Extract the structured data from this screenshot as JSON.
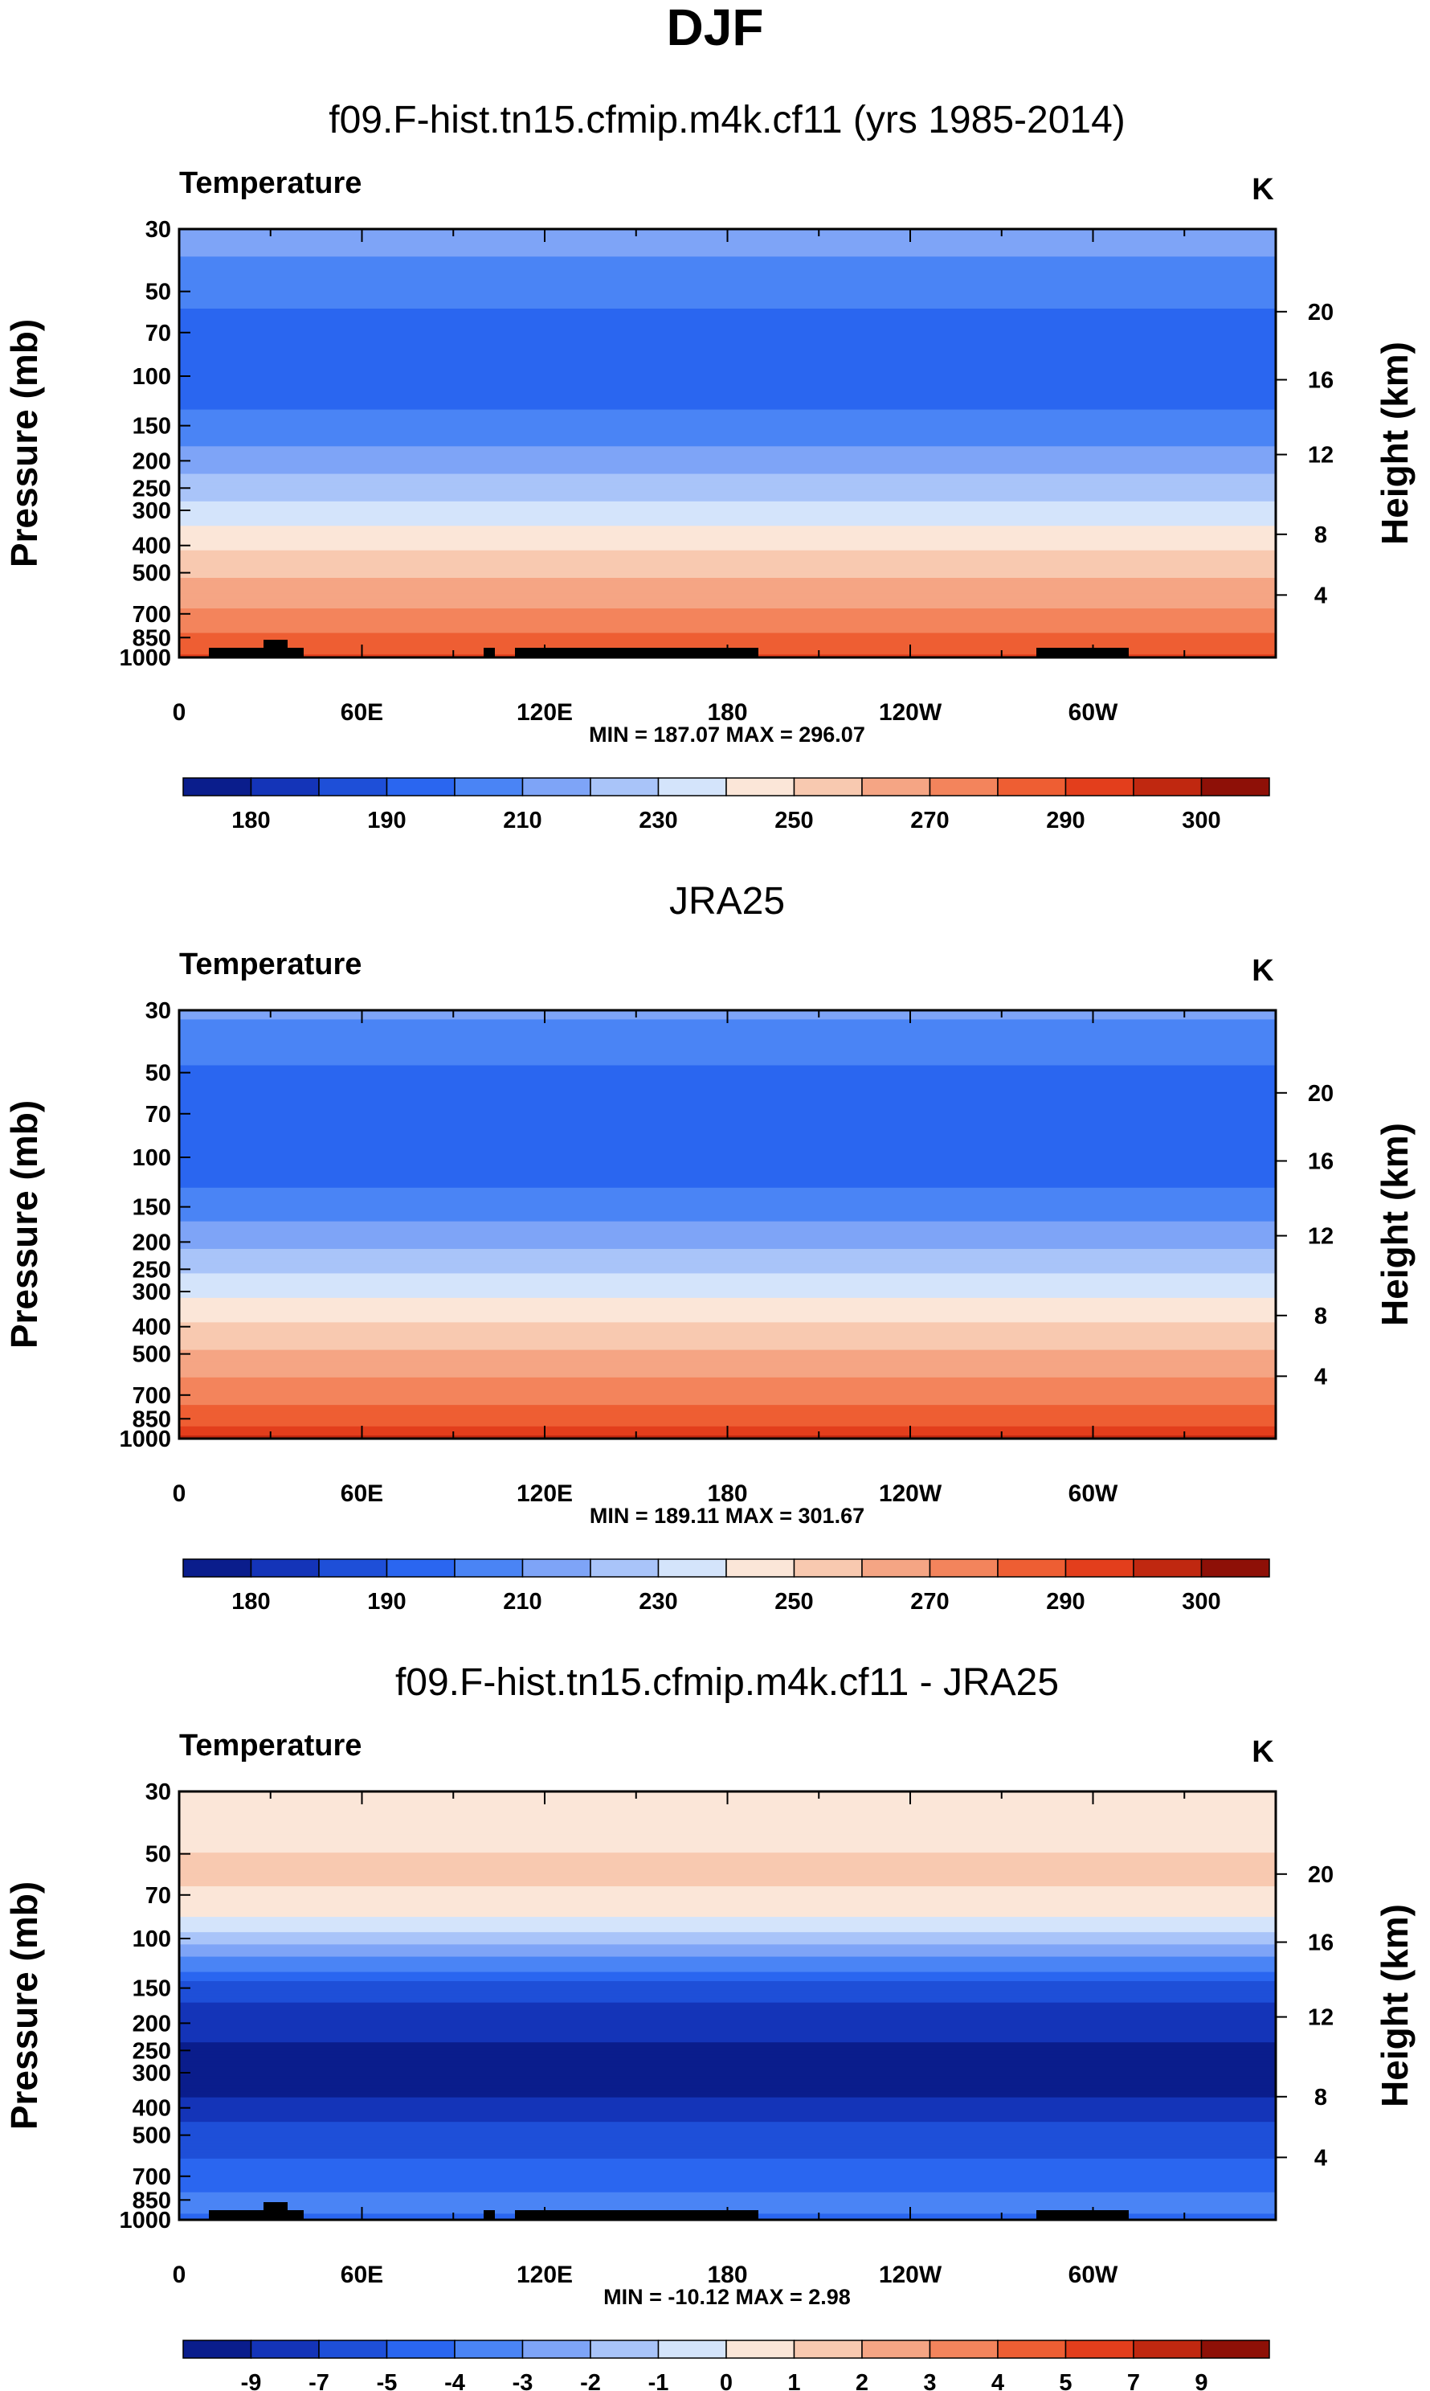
{
  "page_title": "DJF",
  "units": "K",
  "chart_data": [
    {
      "type": "heatmap",
      "panel_title": "f09.F-hist.tn15.cfmip.m4k.cf11 (yrs 1985-2014)",
      "variable_label": "Temperature",
      "units": "K",
      "ylabel": "Pressure (mb)",
      "y2label": "Height (km)",
      "xticks": [
        "0",
        "60E",
        "120E",
        "180",
        "120W",
        "60W"
      ],
      "yticks": [
        "30",
        "50",
        "70",
        "100",
        "150",
        "200",
        "250",
        "300",
        "400",
        "500",
        "700",
        "850",
        "1000"
      ],
      "y2ticks": [
        "20",
        "16",
        "12",
        "8",
        "4"
      ],
      "stats": "MIN = 187.07  MAX = 296.07",
      "colorbar_labels": [
        "180",
        "190",
        "210",
        "230",
        "250",
        "270",
        "290",
        "300"
      ],
      "colorbar_levels": [
        175,
        180,
        185,
        190,
        200,
        210,
        220,
        230,
        240,
        250,
        260,
        270,
        280,
        290,
        295,
        300,
        305
      ],
      "colors": [
        "#0a1d8c",
        "#1434b8",
        "#1e4fd8",
        "#2a66f0",
        "#4a84f5",
        "#7ea4f7",
        "#a9c4f9",
        "#d4e4fb",
        "#fbe6d8",
        "#f8c9b0",
        "#f5a584",
        "#f3845c",
        "#ee5e33",
        "#e33e1c",
        "#c02810",
        "#8e1007"
      ],
      "profile": [
        {
          "p": 30,
          "t": 217
        },
        {
          "p": 40,
          "t": 208
        },
        {
          "p": 60,
          "t": 199
        },
        {
          "p": 100,
          "t": 193
        },
        {
          "p": 150,
          "t": 203
        },
        {
          "p": 200,
          "t": 215
        },
        {
          "p": 250,
          "t": 225
        },
        {
          "p": 300,
          "t": 233
        },
        {
          "p": 400,
          "t": 248
        },
        {
          "p": 500,
          "t": 258
        },
        {
          "p": 700,
          "t": 272
        },
        {
          "p": 850,
          "t": 282
        },
        {
          "p": 1000,
          "t": 292
        }
      ]
    },
    {
      "type": "heatmap",
      "panel_title": "JRA25",
      "variable_label": "Temperature",
      "units": "K",
      "ylabel": "Pressure (mb)",
      "y2label": "Height (km)",
      "xticks": [
        "0",
        "60E",
        "120E",
        "180",
        "120W",
        "60W"
      ],
      "yticks": [
        "30",
        "50",
        "70",
        "100",
        "150",
        "200",
        "250",
        "300",
        "400",
        "500",
        "700",
        "850",
        "1000"
      ],
      "y2ticks": [
        "20",
        "16",
        "12",
        "8",
        "4"
      ],
      "stats": "MIN = 189.11  MAX = 301.67",
      "colorbar_labels": [
        "180",
        "190",
        "210",
        "230",
        "250",
        "270",
        "290",
        "300"
      ],
      "colorbar_levels": [
        175,
        180,
        185,
        190,
        200,
        210,
        220,
        230,
        240,
        250,
        260,
        270,
        280,
        290,
        295,
        300,
        305
      ],
      "colors": [
        "#0a1d8c",
        "#1434b8",
        "#1e4fd8",
        "#2a66f0",
        "#4a84f5",
        "#7ea4f7",
        "#a9c4f9",
        "#d4e4fb",
        "#fbe6d8",
        "#f8c9b0",
        "#f5a584",
        "#f3845c",
        "#ee5e33",
        "#e33e1c",
        "#c02810",
        "#8e1007"
      ],
      "profile": [
        {
          "p": 30,
          "t": 212
        },
        {
          "p": 40,
          "t": 203
        },
        {
          "p": 60,
          "t": 196
        },
        {
          "p": 100,
          "t": 193
        },
        {
          "p": 150,
          "t": 205
        },
        {
          "p": 200,
          "t": 218
        },
        {
          "p": 250,
          "t": 228
        },
        {
          "p": 300,
          "t": 238
        },
        {
          "p": 400,
          "t": 252
        },
        {
          "p": 500,
          "t": 262
        },
        {
          "p": 700,
          "t": 276
        },
        {
          "p": 850,
          "t": 286
        },
        {
          "p": 1000,
          "t": 296
        }
      ]
    },
    {
      "type": "heatmap",
      "panel_title": "f09.F-hist.tn15.cfmip.m4k.cf11 - JRA25",
      "variable_label": "Temperature",
      "units": "K",
      "ylabel": "Pressure (mb)",
      "y2label": "Height (km)",
      "xticks": [
        "0",
        "60E",
        "120E",
        "180",
        "120W",
        "60W"
      ],
      "yticks": [
        "30",
        "50",
        "70",
        "100",
        "150",
        "200",
        "250",
        "300",
        "400",
        "500",
        "700",
        "850",
        "1000"
      ],
      "y2ticks": [
        "20",
        "16",
        "12",
        "8",
        "4"
      ],
      "stats": "MIN = -10.12  MAX =   2.98",
      "colorbar_labels": [
        "-9",
        "-7",
        "-5",
        "-4",
        "-3",
        "-2",
        "-1",
        "0",
        "1",
        "2",
        "3",
        "4",
        "5",
        "7",
        "9"
      ],
      "colorbar_levels": [
        -11,
        -9,
        -7,
        -5,
        -4,
        -3,
        -2,
        -1,
        0,
        1,
        2,
        3,
        4,
        5,
        7,
        9,
        11
      ],
      "colors": [
        "#0a1d8c",
        "#1434b8",
        "#1e4fd8",
        "#2a66f0",
        "#4a84f5",
        "#7ea4f7",
        "#a9c4f9",
        "#d4e4fb",
        "#fbe6d8",
        "#f8c9b0",
        "#f5a584",
        "#f3845c",
        "#ee5e33",
        "#e33e1c",
        "#c02810",
        "#8e1007"
      ],
      "profile": [
        {
          "p": 30,
          "t": 0.5
        },
        {
          "p": 60,
          "t": 1.2
        },
        {
          "p": 80,
          "t": 0.5
        },
        {
          "p": 100,
          "t": -1.5
        },
        {
          "p": 130,
          "t": -4
        },
        {
          "p": 170,
          "t": -7
        },
        {
          "p": 250,
          "t": -9.5
        },
        {
          "p": 350,
          "t": -9.5
        },
        {
          "p": 450,
          "t": -7
        },
        {
          "p": 600,
          "t": -5
        },
        {
          "p": 800,
          "t": -4
        },
        {
          "p": 900,
          "t": -3.5
        },
        {
          "p": 1000,
          "t": -4.5
        }
      ]
    }
  ]
}
